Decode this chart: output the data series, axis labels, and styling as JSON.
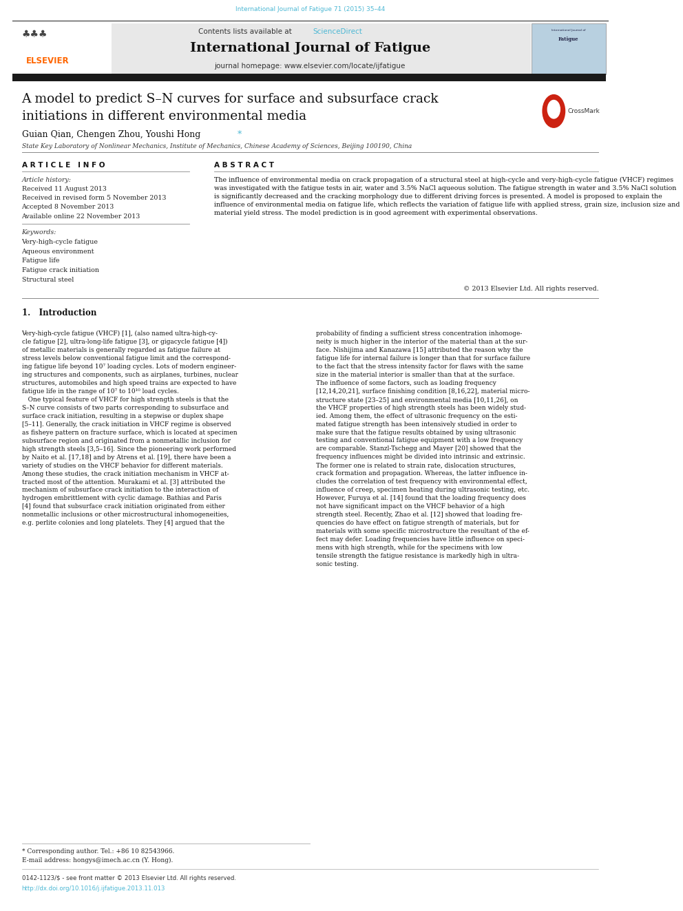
{
  "page_width": 9.92,
  "page_height": 13.23,
  "bg_color": "#ffffff",
  "top_journal_ref": "International Journal of Fatigue 71 (2015) 35–44",
  "top_journal_ref_color": "#4db8d4",
  "journal_title": "International Journal of Fatigue",
  "journal_homepage": "journal homepage: www.elsevier.com/locate/ijfatigue",
  "contents_text": "Contents lists available at ",
  "sciencedirect_text": "ScienceDirect",
  "sciencedirect_color": "#4db8d4",
  "header_bg": "#e8e8e8",
  "article_title": "A model to predict S–N curves for surface and subsurface crack\ninitiations in different environmental media",
  "authors": "Guian Qian, Chengen Zhou, Youshi Hong",
  "author_star": "*",
  "author_star_color": "#4db8d4",
  "affiliation": "State Key Laboratory of Nonlinear Mechanics, Institute of Mechanics, Chinese Academy of Sciences, Beijing 100190, China",
  "article_info_title": "A R T I C L E   I N F O",
  "abstract_title": "A B S T R A C T",
  "article_history_label": "Article history:",
  "received": "Received 11 August 2013",
  "revised": "Received in revised form 5 November 2013",
  "accepted": "Accepted 8 November 2013",
  "available": "Available online 22 November 2013",
  "keywords_label": "Keywords:",
  "keywords": [
    "Very-high-cycle fatigue",
    "Aqueous environment",
    "Fatigue life",
    "Fatigue crack initiation",
    "Structural steel"
  ],
  "abstract_text": "The influence of environmental media on crack propagation of a structural steel at high-cycle and very-high-cycle fatigue (VHCF) regimes was investigated with the fatigue tests in air, water and 3.5% NaCl aqueous solution. The fatigue strength in water and 3.5% NaCl solution is significantly decreased and the cracking morphology due to different driving forces is presented. A model is proposed to explain the influence of environmental media on fatigue life, which reflects the variation of fatigue life with applied stress, grain size, inclusion size and material yield stress. The model prediction is in good agreement with experimental observations.",
  "copyright": "© 2013 Elsevier Ltd. All rights reserved.",
  "intro_title": "1.   Introduction",
  "intro_col1": "Very-high-cycle fatigue (VHCF) [1], (also named ultra-high-cy-\ncle fatigue [2], ultra-long-life fatigue [3], or gigacycle fatigue [4])\nof metallic materials is generally regarded as fatigue failure at\nstress levels below conventional fatigue limit and the correspond-\ning fatigue life beyond 10⁷ loading cycles. Lots of modern engineer-\ning structures and components, such as airplanes, turbines, nuclear\nstructures, automobiles and high speed trains are expected to have\nfatigue life in the range of 10⁷ to 10¹⁰ load cycles.\n   One typical feature of VHCF for high strength steels is that the\nS–N curve consists of two parts corresponding to subsurface and\nsurface crack initiation, resulting in a stepwise or duplex shape\n[5–11]. Generally, the crack initiation in VHCF regime is observed\nas fisheye pattern on fracture surface, which is located at specimen\nsubsurface region and originated from a nonmetallic inclusion for\nhigh strength steels [3,5–16]. Since the pioneering work performed\nby Naito et al. [17,18] and by Atrens et al. [19], there have been a\nvariety of studies on the VHCF behavior for different materials.\nAmong these studies, the crack initiation mechanism in VHCF at-\ntracted most of the attention. Murakami et al. [3] attributed the\nmechanism of subsurface crack initiation to the interaction of\nhydrogen embrittlement with cyclic damage. Bathias and Paris\n[4] found that subsurface crack initiation originated from either\nnonmetallic inclusions or other microstructural inhomogeneities,\ne.g. perlite colonies and long platelets. They [4] argued that the",
  "intro_col2": "probability of finding a sufficient stress concentration inhomoge-\nneity is much higher in the interior of the material than at the sur-\nface. Nishijima and Kanazawa [15] attributed the reason why the\nfatigue life for internal failure is longer than that for surface failure\nto the fact that the stress intensity factor for flaws with the same\nsize in the material interior is smaller than that at the surface.\nThe influence of some factors, such as loading frequency\n[12,14,20,21], surface finishing condition [8,16,22], material micro-\nstructure state [23–25] and environmental media [10,11,26], on\nthe VHCF properties of high strength steels has been widely stud-\nied. Among them, the effect of ultrasonic frequency on the esti-\nmated fatigue strength has been intensively studied in order to\nmake sure that the fatigue results obtained by using ultrasonic\ntesting and conventional fatigue equipment with a low frequency\nare comparable. Stanzl-Tschegg and Mayer [20] showed that the\nfrequency influences might be divided into intrinsic and extrinsic.\nThe former one is related to strain rate, dislocation structures,\ncrack formation and propagation. Whereas, the latter influence in-\ncludes the correlation of test frequency with environmental effect,\ninfluence of creep, specimen heating during ultrasonic testing, etc.\nHowever, Furuya et al. [14] found that the loading frequency does\nnot have significant impact on the VHCF behavior of a high\nstrength steel. Recently, Zhao et al. [12] showed that loading fre-\nquencies do have effect on fatigue strength of materials, but for\nmaterials with some specific microstructure the resultant of the ef-\nfect may defer. Loading frequencies have little influence on speci-\nmens with high strength, while for the specimens with low\ntensile strength the fatigue resistance is markedly high in ultra-\nsonic testing.",
  "footnote_star": "* Corresponding author. Tel.: +86 10 82543966.",
  "footnote_email": "E-mail address: hongys@imech.ac.cn (Y. Hong).",
  "footer_issn": "0142-1123/$ - see front matter © 2013 Elsevier Ltd. All rights reserved.",
  "footer_doi": "http://dx.doi.org/10.1016/j.ijfatigue.2013.11.013",
  "footer_doi_color": "#4db8d4",
  "elsevier_orange": "#FF6600",
  "thick_bar_color": "#1a1a1a",
  "divider_color": "#888888"
}
